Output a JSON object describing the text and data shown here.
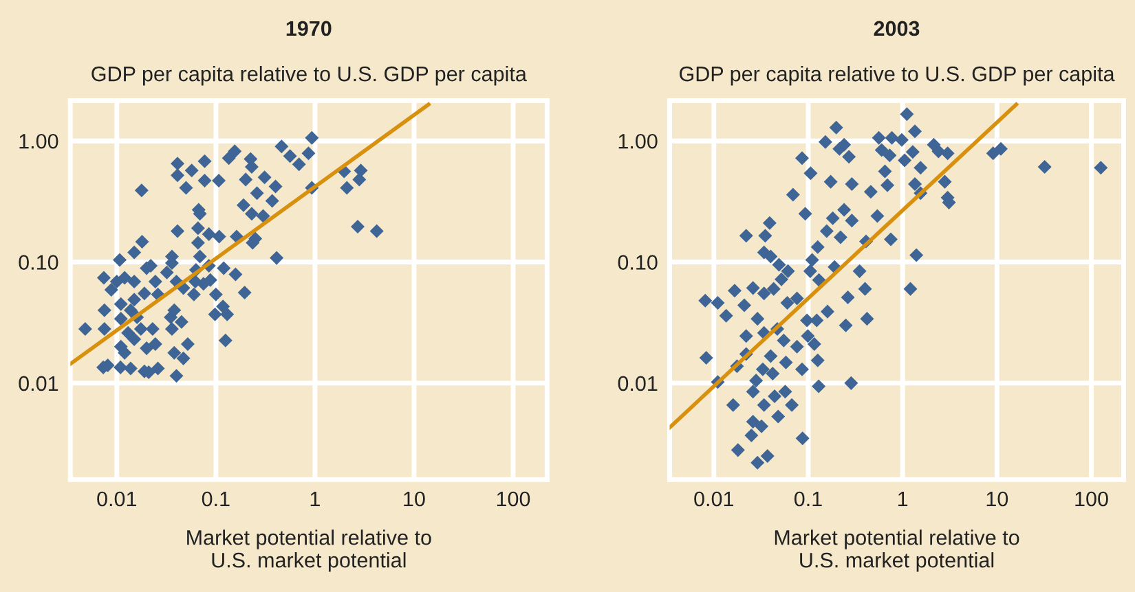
{
  "chart_data": [
    {
      "type": "scatter",
      "title": "1970",
      "ylabel": "GDP per capita relative to U.S. GDP per capita",
      "xlabel": "Market potential relative to\nU.S. market potential",
      "log": "xy",
      "grid": true,
      "marker": "diamond",
      "xlim": [
        0.0034,
        220
      ],
      "ylim": [
        0.0016,
        2.15
      ],
      "xticks": [
        0.01,
        0.1,
        1,
        10,
        100
      ],
      "yticks": [
        {
          "value": 0.01,
          "label": "0.01"
        },
        {
          "value": 0.1,
          "label": "0.10"
        },
        {
          "value": 1,
          "label": "1.00"
        }
      ],
      "series": [
        {
          "color": "#3f6596",
          "x": [
            0.0048,
            0.0073,
            0.0081,
            0.0075,
            0.0075,
            0.0074,
            0.0088,
            0.0107,
            0.0109,
            0.011,
            0.012,
            0.011,
            0.011,
            0.012,
            0.013,
            0.0138,
            0.015,
            0.015,
            0.018,
            0.0178,
            0.015,
            0.016,
            0.015,
            0.0175,
            0.019,
            0.02,
            0.022,
            0.02,
            0.021,
            0.019,
            0.023,
            0.0245,
            0.026,
            0.026,
            0.032,
            0.036,
            0.036,
            0.035,
            0.038,
            0.036,
            0.038,
            0.04,
            0.047,
            0.045,
            0.04,
            0.047,
            0.052,
            0.041,
            0.041,
            0.041,
            0.05,
            0.057,
            0.06,
            0.062,
            0.063,
            0.066,
            0.066,
            0.067,
            0.069,
            0.077,
            0.077,
            0.069,
            0.075,
            0.085,
            0.088,
            0.085,
            0.1,
            0.098,
            0.107,
            0.108,
            0.12,
            0.118,
            0.125,
            0.13,
            0.135,
            0.155,
            0.162,
            0.158,
            0.195,
            0.19,
            0.2,
            0.224,
            0.23,
            0.23,
            0.26,
            0.31,
            0.3,
            0.25,
            0.235,
            0.37,
            0.4,
            0.41,
            0.46,
            0.56,
            0.69,
            0.86,
            0.93,
            0.93,
            1.97,
            2.1,
            2.9,
            2.8,
            2.7,
            4.2,
            0.0245,
            0.0138,
            0.01
          ],
          "values": [
            0.028,
            0.0135,
            0.014,
            0.04,
            0.028,
            0.074,
            0.059,
            0.104,
            0.0135,
            0.045,
            0.074,
            0.034,
            0.02,
            0.0178,
            0.026,
            0.0132,
            0.069,
            0.12,
            0.147,
            0.39,
            0.049,
            0.035,
            0.023,
            0.028,
            0.055,
            0.089,
            0.093,
            0.0194,
            0.0123,
            0.0125,
            0.028,
            0.069,
            0.0132,
            0.054,
            0.082,
            0.111,
            0.098,
            0.035,
            0.04,
            0.028,
            0.0178,
            0.0115,
            0.016,
            0.032,
            0.069,
            0.061,
            0.021,
            0.18,
            0.65,
            0.52,
            0.41,
            0.57,
            0.054,
            0.069,
            0.086,
            0.19,
            0.144,
            0.27,
            0.25,
            0.68,
            0.47,
            0.111,
            0.066,
            0.093,
            0.071,
            0.17,
            0.054,
            0.037,
            0.47,
            0.162,
            0.089,
            0.043,
            0.0225,
            0.037,
            0.72,
            0.82,
            0.162,
            0.079,
            0.056,
            0.295,
            0.48,
            0.71,
            0.61,
            0.25,
            0.37,
            0.5,
            0.24,
            0.156,
            0.144,
            0.32,
            0.42,
            0.108,
            0.9,
            0.75,
            0.64,
            0.79,
            1.06,
            0.41,
            0.56,
            0.41,
            0.57,
            0.48,
            0.196,
            0.18,
            0.021,
            0.04,
            0.069
          ]
        },
        {
          "type": "line",
          "marker": "none",
          "color": "#d8900f",
          "x": [
            0.0034,
            14
          ],
          "values": [
            0.0144,
            2.0
          ]
        }
      ]
    },
    {
      "type": "scatter",
      "title": "2003",
      "ylabel": "GDP per capita relative to U.S. GDP per capita",
      "xlabel": "Market potential relative to\nU.S. market potential",
      "log": "xy",
      "grid": true,
      "marker": "diamond",
      "xlim": [
        0.0034,
        220
      ],
      "ylim": [
        0.0016,
        2.15
      ],
      "xticks": [
        0.01,
        0.1,
        1,
        10,
        100
      ],
      "yticks": [
        {
          "value": 0.01,
          "label": "0.01"
        },
        {
          "value": 0.1,
          "label": "0.10"
        },
        {
          "value": 1,
          "label": "1.00"
        }
      ],
      "series": [
        {
          "color": "#3f6596",
          "x": [
            0.0081,
            0.0083,
            0.011,
            0.011,
            0.0135,
            0.016,
            0.018,
            0.0166,
            0.0176,
            0.021,
            0.022,
            0.022,
            0.022,
            0.026,
            0.029,
            0.034,
            0.035,
            0.034,
            0.039,
            0.04,
            0.043,
            0.034,
            0.028,
            0.026,
            0.026,
            0.025,
            0.029,
            0.037,
            0.032,
            0.034,
            0.044,
            0.048,
            0.033,
            0.04,
            0.042,
            0.047,
            0.055,
            0.052,
            0.049,
            0.057,
            0.061,
            0.06,
            0.058,
            0.069,
            0.067,
            0.076,
            0.076,
            0.086,
            0.086,
            0.087,
            0.093,
            0.097,
            0.099,
            0.105,
            0.106,
            0.11,
            0.116,
            0.123,
            0.126,
            0.129,
            0.126,
            0.13,
            0.152,
            0.157,
            0.16,
            0.173,
            0.182,
            0.19,
            0.198,
            0.214,
            0.24,
            0.22,
            0.24,
            0.263,
            0.27,
            0.29,
            0.29,
            0.285,
            0.25,
            0.35,
            0.4,
            0.41,
            0.42,
            0.46,
            0.54,
            0.56,
            0.6,
            0.65,
            0.69,
            0.73,
            0.77,
            0.75,
            0.98,
            1.05,
            1.11,
            1.28,
            1.35,
            1.35,
            1.55,
            1.55,
            1.4,
            1.21,
            2.14,
            2.4,
            3.0,
            2.8,
            3.0,
            3.1,
            9.1,
            11,
            32,
            126
          ],
          "values": [
            0.048,
            0.0162,
            0.046,
            0.0102,
            0.036,
            0.0066,
            0.0028,
            0.058,
            0.0138,
            0.044,
            0.165,
            0.0245,
            0.0174,
            0.061,
            0.034,
            0.055,
            0.165,
            0.12,
            0.21,
            0.111,
            0.06,
            0.026,
            0.0105,
            0.0085,
            0.0048,
            0.0037,
            0.0022,
            0.0025,
            0.0044,
            0.0066,
            0.0078,
            0.0053,
            0.013,
            0.0167,
            0.012,
            0.028,
            0.0225,
            0.072,
            0.095,
            0.0085,
            0.084,
            0.046,
            0.0148,
            0.36,
            0.0066,
            0.02,
            0.05,
            0.72,
            0.013,
            0.0035,
            0.25,
            0.033,
            0.0245,
            0.084,
            0.54,
            0.104,
            0.021,
            0.033,
            0.0154,
            0.0094,
            0.133,
            0.071,
            0.98,
            0.18,
            0.039,
            0.46,
            0.23,
            0.091,
            1.29,
            0.86,
            0.93,
            0.16,
            0.27,
            0.051,
            0.74,
            0.44,
            0.22,
            0.01,
            0.03,
            0.084,
            0.06,
            0.148,
            0.034,
            0.38,
            0.24,
            1.06,
            0.84,
            0.56,
            0.43,
            0.76,
            1.06,
            0.154,
            1.02,
            0.69,
            1.66,
            0.81,
            1.2,
            0.44,
            0.6,
            0.37,
            0.114,
            0.06,
            0.93,
            0.82,
            0.79,
            0.46,
            0.34,
            0.31,
            0.79,
            0.86,
            0.61,
            0.6
          ]
        },
        {
          "type": "line",
          "marker": "none",
          "color": "#d8900f",
          "x": [
            0.0034,
            16
          ],
          "values": [
            0.0043,
            2.0
          ]
        }
      ]
    }
  ]
}
